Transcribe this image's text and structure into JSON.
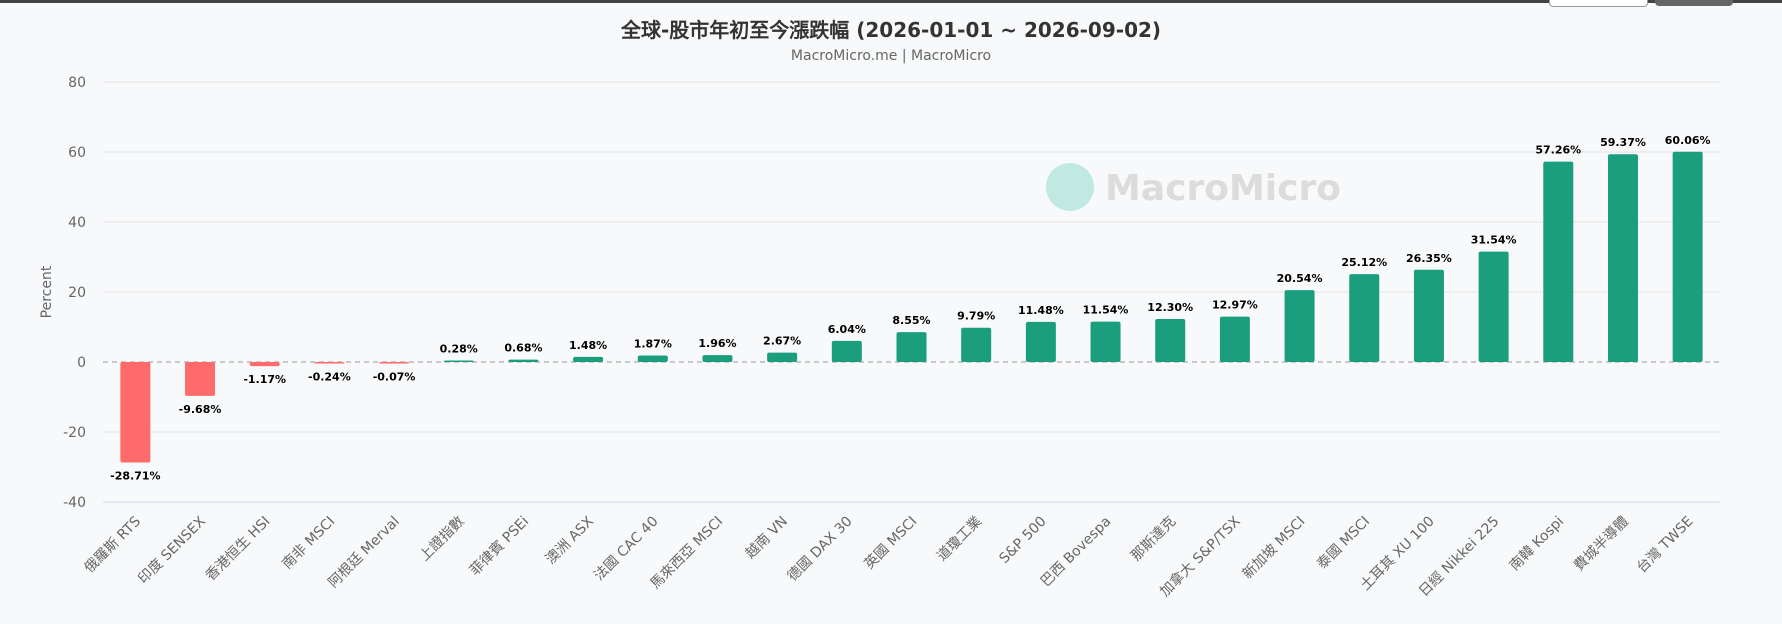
{
  "chart_data": {
    "type": "bar",
    "title": "全球-股市年初至今漲跌幅 (2026-01-01 ~ 2026-09-02)",
    "subtitle": "MacroMicro.me | MacroMicro",
    "ylabel": "Percent",
    "xlabel": "",
    "ylim": [
      -40,
      80
    ],
    "yticks": [
      -40,
      -20,
      0,
      20,
      40,
      60,
      80
    ],
    "grid": true,
    "legend": "none",
    "watermark": "MacroMicro",
    "categories": [
      "俄羅斯 RTS",
      "印度 SENSEX",
      "香港恒生 HSI",
      "南非 MSCI",
      "阿根廷 Merval",
      "上證指數",
      "菲律賓 PSEi",
      "澳洲 ASX",
      "法國 CAC 40",
      "馬來西亞 MSCI",
      "越南 VN",
      "德國 DAX 30",
      "英國 MSCI",
      "道瓊工業",
      "S&P 500",
      "巴西 Bovespa",
      "那斯達克",
      "加拿大 S&P/TSX",
      "新加坡 MSCI",
      "泰國 MSCI",
      "土耳其 XU 100",
      "日經 Nikkei 225",
      "南韓 Kospi",
      "費城半導體",
      "台灣 TWSE"
    ],
    "values": [
      -28.71,
      -9.68,
      -1.17,
      -0.24,
      -0.07,
      0.28,
      0.68,
      1.48,
      1.87,
      1.96,
      2.67,
      6.04,
      8.55,
      9.79,
      11.48,
      11.54,
      12.3,
      12.97,
      20.54,
      25.12,
      26.35,
      31.54,
      57.26,
      59.37,
      60.06
    ],
    "data_labels": [
      "-28.71%",
      "-9.68%",
      "-1.17%",
      "-0.24%",
      "-0.07%",
      "0.28%",
      "0.68%",
      "1.48%",
      "1.87%",
      "1.96%",
      "2.67%",
      "6.04%",
      "8.55%",
      "9.79%",
      "11.48%",
      "11.54%",
      "12.30%",
      "12.97%",
      "20.54%",
      "25.12%",
      "26.35%",
      "31.54%",
      "57.26%",
      "59.37%",
      "60.06%"
    ],
    "colors": {
      "positive": "#1a9e7d",
      "negative": "#ff6b6b",
      "grid": "#e4e4e4",
      "zero_line": "#aaaaaa",
      "axis_text": "#666666"
    }
  }
}
